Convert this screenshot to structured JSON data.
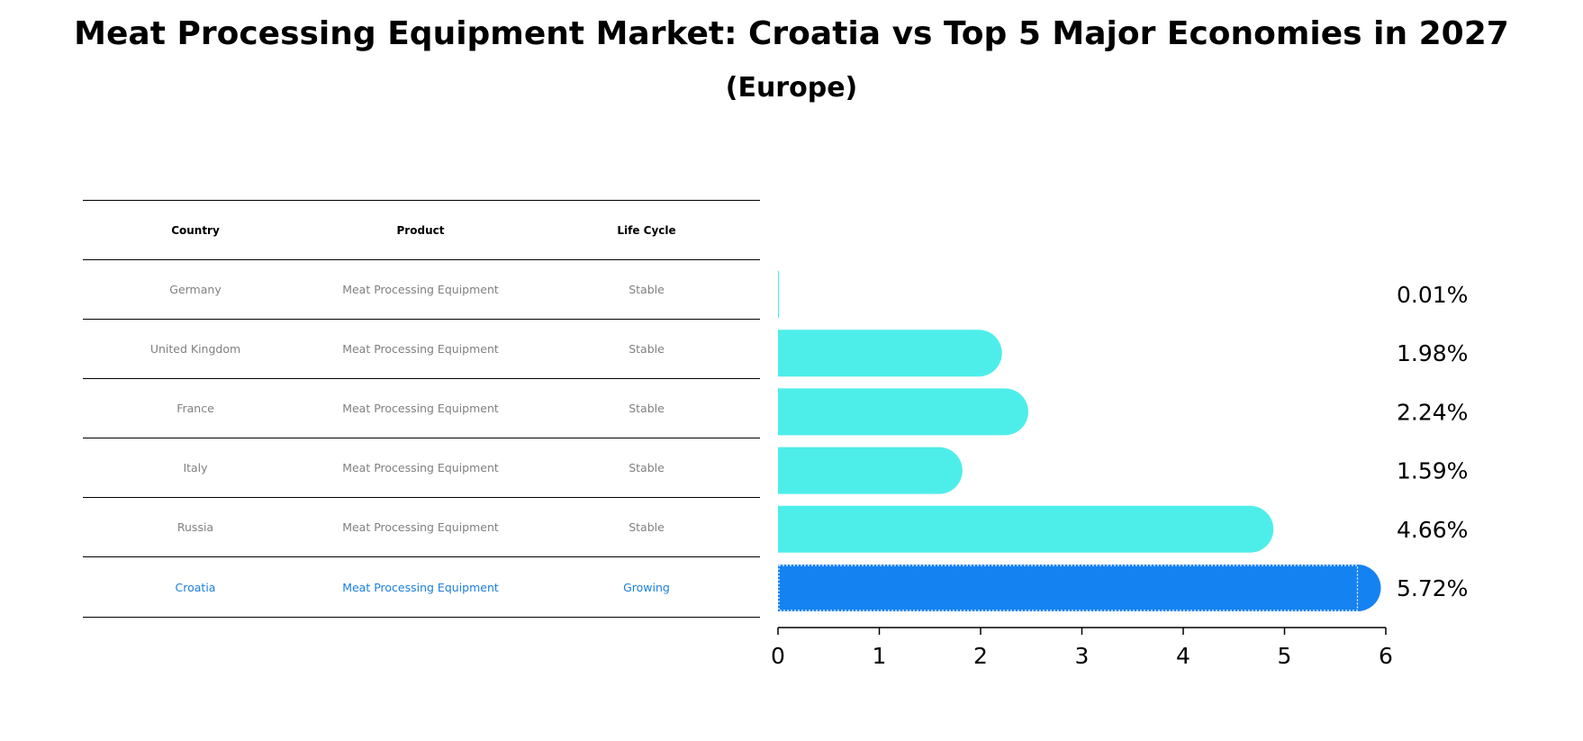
{
  "title": "Meat Processing Equipment Market: Croatia vs Top 5 Major Economies in 2027",
  "subtitle": "(Europe)",
  "table": {
    "headers": [
      "Country",
      "Product",
      "Life Cycle"
    ],
    "rows": [
      {
        "country": "Germany",
        "product": "Meat Processing Equipment",
        "life_cycle": "Stable"
      },
      {
        "country": "United Kingdom",
        "product": "Meat Processing Equipment",
        "life_cycle": "Stable"
      },
      {
        "country": "France",
        "product": "Meat Processing Equipment",
        "life_cycle": "Stable"
      },
      {
        "country": "Italy",
        "product": "Meat Processing Equipment",
        "life_cycle": "Stable"
      },
      {
        "country": "Russia",
        "product": "Meat Processing Equipment",
        "life_cycle": "Stable"
      },
      {
        "country": "Croatia",
        "product": "Meat Processing Equipment",
        "life_cycle": "Growing"
      }
    ],
    "highlight_color": "#1a7fe0",
    "text_color": "#808080"
  },
  "chart_data": {
    "type": "bar",
    "orientation": "horizontal",
    "categories": [
      "Germany",
      "United Kingdom",
      "France",
      "Italy",
      "Russia",
      "Croatia"
    ],
    "values": [
      0.01,
      1.98,
      2.24,
      1.59,
      4.66,
      5.72
    ],
    "value_labels": [
      "0.01%",
      "1.98%",
      "2.24%",
      "1.59%",
      "4.66%",
      "5.72%"
    ],
    "xlim": [
      0,
      6
    ],
    "xticks": [
      0,
      1,
      2,
      3,
      4,
      5,
      6
    ],
    "grid": false,
    "colors": {
      "default": "#4deeea",
      "highlight": "#1582f2"
    },
    "highlight_category": "Croatia"
  }
}
